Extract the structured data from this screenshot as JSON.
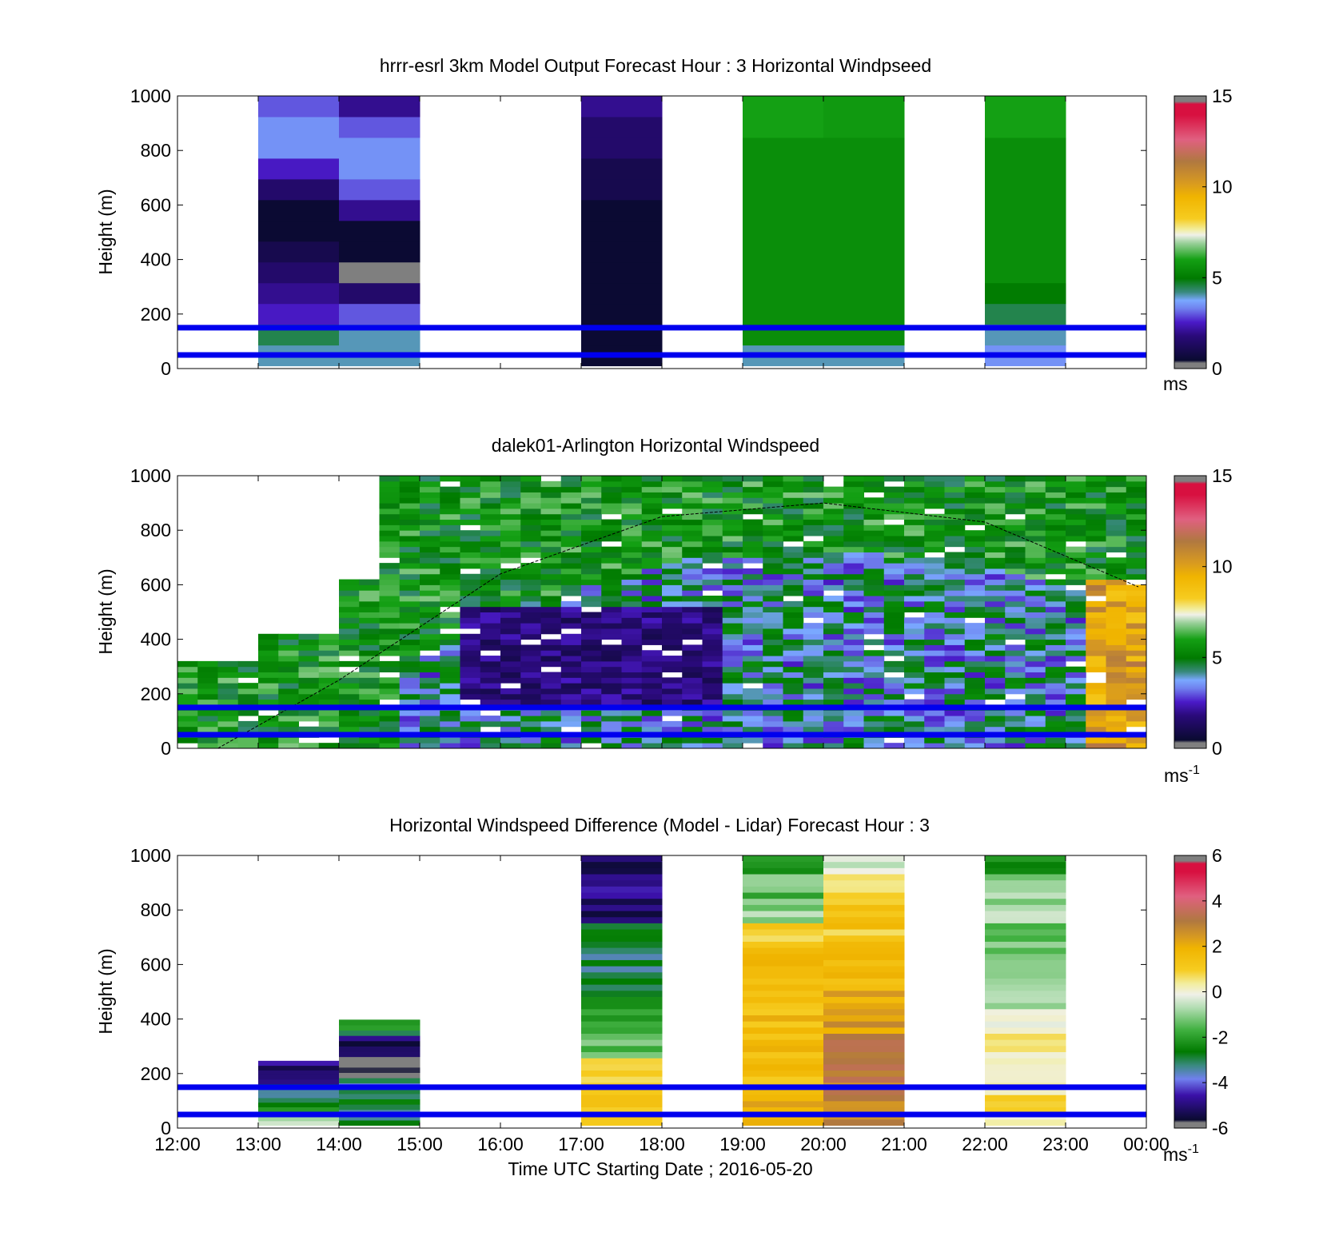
{
  "figure": {
    "xlabel": "Time UTC  Starting Date ; 2016-05-20",
    "x_ticks": [
      "12:00",
      "13:00",
      "14:00",
      "15:00",
      "16:00",
      "17:00",
      "18:00",
      "19:00",
      "20:00",
      "21:00",
      "22:00",
      "23:00",
      "00:00"
    ],
    "y_ticks": [
      "0",
      "200",
      "400",
      "600",
      "800",
      "1000"
    ],
    "ylabel": "Height (m)",
    "reference_heights_m": [
      50,
      150
    ],
    "reference_line_color": "#0000ee"
  },
  "chart_data": [
    {
      "type": "heatmap",
      "title": "hrrr-esrl 3km Model Output   Forecast Hour : 3 Horizontal Windpseed",
      "ylabel": "Height (m)",
      "xlim": [
        12,
        24
      ],
      "ylim": [
        0,
        1000
      ],
      "colorbar": {
        "ticks": [
          "0",
          "5",
          "10",
          "15"
        ],
        "range": [
          0,
          15
        ],
        "unit": "ms",
        "unit_superscript": ""
      },
      "hourly_profiles": [
        {
          "hour": "13:00",
          "speed_ms": [
            4.0,
            4.5,
            2.5,
            2.0,
            1.5,
            1.0,
            0.5,
            0.5,
            1.5,
            2.5,
            3.5,
            3.5,
            3.0
          ]
        },
        {
          "hour": "14:00",
          "speed_ms": [
            4.0,
            4.0,
            3.0,
            1.5,
            0.0,
            0.5,
            0.5,
            2.0,
            3.0,
            3.5,
            3.5,
            3.0,
            2.0
          ]
        },
        {
          "hour": "17:00",
          "speed_ms": [
            0.5,
            0.5,
            0.5,
            0.5,
            0.5,
            0.5,
            0.5,
            0.5,
            1.0,
            1.0,
            1.5,
            1.5,
            2.0
          ]
        },
        {
          "hour": "19:00",
          "speed_ms": [
            4.0,
            5.5,
            5.5,
            5.5,
            5.5,
            5.5,
            5.5,
            5.5,
            5.5,
            5.5,
            5.5,
            6.0,
            6.0
          ]
        },
        {
          "hour": "20:00",
          "speed_ms": [
            4.0,
            5.5,
            5.5,
            5.5,
            5.5,
            5.5,
            5.5,
            5.5,
            5.5,
            5.5,
            5.5,
            5.8,
            5.8
          ]
        },
        {
          "hour": "22:00",
          "speed_ms": [
            3.5,
            4.0,
            4.5,
            5.0,
            5.5,
            5.5,
            5.5,
            5.5,
            5.5,
            5.5,
            5.5,
            6.0,
            6.0
          ]
        }
      ]
    },
    {
      "type": "heatmap",
      "title": "dalek01-Arlington  Horizontal Windspeed",
      "ylabel": "Height (m)",
      "xlim": [
        12,
        24
      ],
      "ylim": [
        0,
        1000
      ],
      "colorbar": {
        "ticks": [
          "0",
          "5",
          "10",
          "15"
        ],
        "range": [
          0,
          15
        ],
        "unit": "ms",
        "unit_superscript": "-1"
      },
      "time_step_hours": 0.25,
      "near_surface_speed_ms": 5.5,
      "boundary_layer_height_m": {
        "12:30": 0,
        "14:00": 250,
        "16:00": 640,
        "18:00": 850,
        "20:00": 900,
        "22:00": 830,
        "24:00": 580
      },
      "low_speed_core": {
        "hours": [
          15.5,
          18.5
        ],
        "height_m": [
          150,
          500
        ],
        "speed_ms": 1.0
      },
      "late_jet": {
        "hours": [
          23.2,
          24.0
        ],
        "height_m": [
          0,
          600
        ],
        "speed_ms": 10.0
      }
    },
    {
      "type": "heatmap",
      "title": "Horizontal Windspeed Difference (Model - Lidar) Forecast Hour : 3",
      "ylabel": "Height (m)",
      "xlabel": "Time UTC  Starting Date ; 2016-05-20",
      "xlim": [
        12,
        24
      ],
      "ylim": [
        0,
        1000
      ],
      "colorbar": {
        "ticks": [
          "-6",
          "-4",
          "-2",
          "0",
          "2",
          "4",
          "6"
        ],
        "range": [
          -6,
          6
        ],
        "unit": "ms",
        "unit_superscript": "-1"
      },
      "hourly_profiles": [
        {
          "hour": "13:00",
          "top_m": 240,
          "diff_ms": [
            -1.0,
            -2.5,
            -3.0,
            -4.5,
            -5.0
          ]
        },
        {
          "hour": "14:00",
          "top_m": 390,
          "diff_ms": [
            -3.0,
            -3.0,
            -3.5,
            -5.5,
            -5.5,
            -5.0,
            -2.5
          ]
        },
        {
          "hour": "17:00",
          "top_m": 1000,
          "diff_ms": [
            1.0,
            1.0,
            0.5,
            -1.5,
            -2.0,
            -2.5,
            -3.0,
            -3.0,
            -3.0,
            -5.0,
            -5.0,
            -5.5
          ]
        },
        {
          "hour": "19:00",
          "top_m": 1000,
          "diff_ms": [
            1.8,
            1.5,
            1.5,
            1.5,
            1.5,
            1.5,
            1.5,
            1.5,
            0.8,
            -1.0,
            -1.5,
            -2.0
          ]
        },
        {
          "hour": "20:00",
          "top_m": 1000,
          "diff_ms": [
            3.0,
            3.0,
            3.0,
            3.0,
            2.5,
            2.0,
            1.8,
            1.5,
            1.2,
            1.0,
            0.5,
            -0.5
          ]
        },
        {
          "hour": "22:00",
          "top_m": 1000,
          "diff_ms": [
            0.5,
            0.5,
            0.0,
            0.5,
            0.0,
            -0.5,
            -1.0,
            -1.0,
            -1.5,
            -1.0,
            -1.0,
            -2.0
          ]
        }
      ]
    }
  ]
}
